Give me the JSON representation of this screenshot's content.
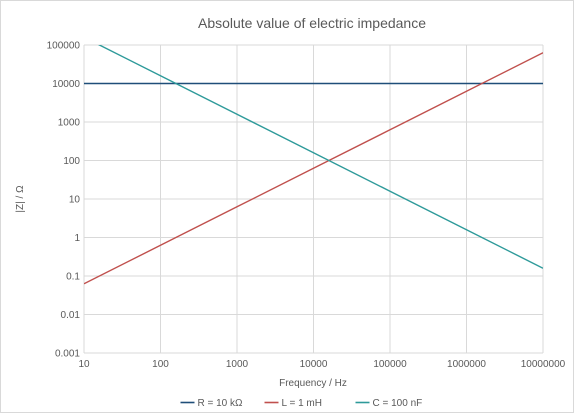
{
  "chart_data": {
    "type": "line",
    "title": "Absolute value of electric impedance",
    "xlabel": "Frequency / Hz",
    "ylabel": "|Z| / Ω",
    "x_scale": "log",
    "y_scale": "log",
    "xlim": [
      10,
      10000000
    ],
    "ylim": [
      0.001,
      100000
    ],
    "x_ticks": [
      {
        "value": 10,
        "label": "10"
      },
      {
        "value": 100,
        "label": "100"
      },
      {
        "value": 1000,
        "label": "1000"
      },
      {
        "value": 10000,
        "label": "10000"
      },
      {
        "value": 100000,
        "label": "100000"
      },
      {
        "value": 1000000,
        "label": "1000000"
      },
      {
        "value": 10000000,
        "label": "10000000"
      }
    ],
    "y_ticks": [
      {
        "value": 0.001,
        "label": "0.001"
      },
      {
        "value": 0.01,
        "label": "0.01"
      },
      {
        "value": 0.1,
        "label": "0.1"
      },
      {
        "value": 1,
        "label": "1"
      },
      {
        "value": 10,
        "label": "10"
      },
      {
        "value": 100,
        "label": "100"
      },
      {
        "value": 1000,
        "label": "1000"
      },
      {
        "value": 10000,
        "label": "10000"
      },
      {
        "value": 100000,
        "label": "100000"
      }
    ],
    "grid": true,
    "legend_position": "bottom",
    "series": [
      {
        "name": "R = 10 kΩ",
        "color": "#1f4e79",
        "x": [
          10,
          100,
          1000,
          10000,
          100000,
          1000000,
          10000000
        ],
        "y": [
          10000,
          10000,
          10000,
          10000,
          10000,
          10000,
          10000
        ]
      },
      {
        "name": "L = 1 mH",
        "color": "#c0504d",
        "x": [
          10,
          100,
          1000,
          10000,
          100000,
          1000000,
          10000000
        ],
        "y": [
          0.0628,
          0.628,
          6.28,
          62.8,
          628,
          6283,
          62832
        ]
      },
      {
        "name": "C = 100 nF",
        "color": "#2e9a9a",
        "x": [
          10,
          100,
          1000,
          10000,
          100000,
          1000000,
          10000000
        ],
        "y": [
          159155,
          15915,
          1592,
          159.2,
          15.9,
          1.59,
          0.159
        ]
      }
    ]
  }
}
